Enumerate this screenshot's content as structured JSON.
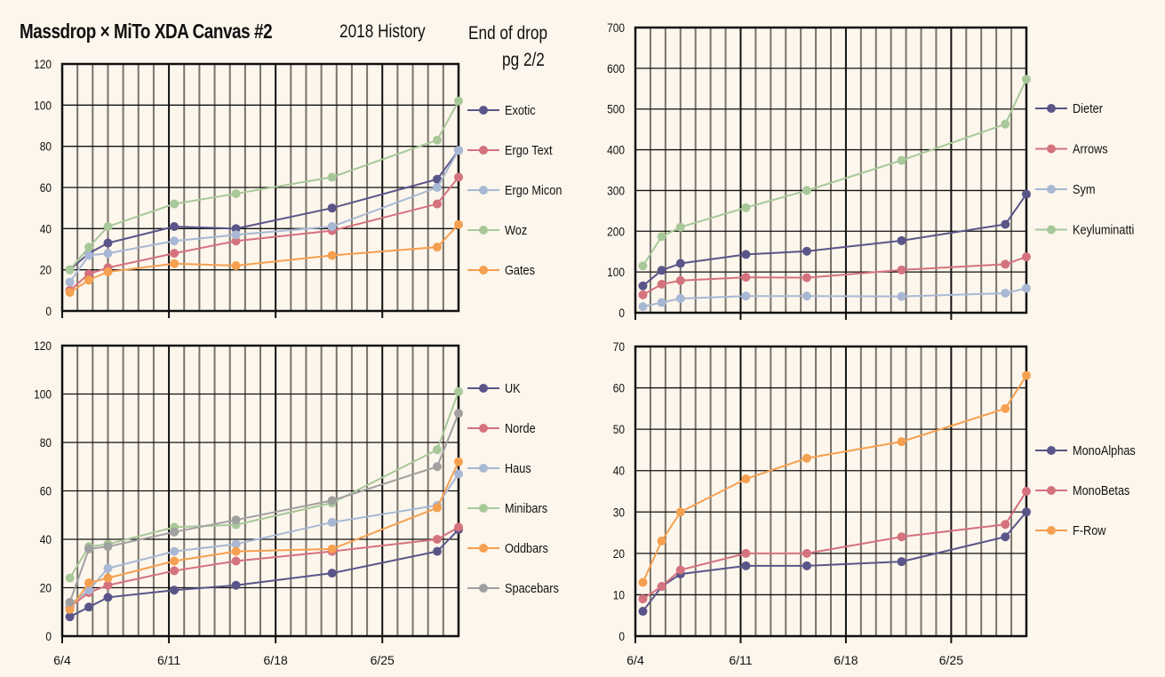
{
  "header": {
    "title": "Massdrop × MiTo XDA Canvas #2",
    "subtitle": "2018 History",
    "note_line1": "End of drop",
    "note_line2": "pg 2/2"
  },
  "colors": {
    "background": "#fdf6ec",
    "purple": "#5a5589",
    "red": "#d4727e",
    "blue": "#a8b8d4",
    "green": "#a8c89a",
    "orange": "#f5a050",
    "gray": "#a0a0a0"
  },
  "chart_data": [
    {
      "type": "line",
      "id": "top-left",
      "title": "",
      "xlabel": "",
      "ylabel": "",
      "x_unit": "days since 6/4",
      "x": [
        0.5,
        1.75,
        3,
        7.35,
        11.4,
        17.7,
        24.6,
        26
      ],
      "x_range": [
        0,
        26
      ],
      "x_ticks": [
        {
          "v": 0,
          "label": "6/4"
        },
        {
          "v": 7,
          "label": "6/11"
        },
        {
          "v": 14,
          "label": "6/18"
        },
        {
          "v": 21,
          "label": "6/25"
        }
      ],
      "ylim": [
        0,
        120
      ],
      "y_ticks": [
        0,
        20,
        40,
        60,
        80,
        100,
        120
      ],
      "grid": true,
      "legend": "right",
      "series": [
        {
          "name": "Exotic",
          "color": "#5a5589",
          "values": [
            20,
            28,
            33,
            41,
            40,
            50,
            64,
            78
          ]
        },
        {
          "name": "Ergo Text",
          "color": "#d4727e",
          "values": [
            10,
            18,
            21,
            28,
            34,
            39,
            52,
            65
          ]
        },
        {
          "name": "Ergo Micon",
          "color": "#a8b8d4",
          "values": [
            14,
            27,
            28,
            34,
            37,
            41,
            60,
            78
          ]
        },
        {
          "name": "Woz",
          "color": "#a8c89a",
          "values": [
            20,
            31,
            41,
            52,
            57,
            65,
            83,
            102
          ]
        },
        {
          "name": "Gates",
          "color": "#f5a050",
          "values": [
            9,
            15,
            19,
            23,
            22,
            27,
            31,
            42
          ]
        }
      ]
    },
    {
      "type": "line",
      "id": "top-right",
      "title": "",
      "xlabel": "",
      "ylabel": "",
      "x_unit": "days since 6/4",
      "x": [
        0.5,
        1.75,
        3,
        7.35,
        11.4,
        17.7,
        24.6,
        26
      ],
      "x_range": [
        0,
        26
      ],
      "x_ticks": [
        {
          "v": 0,
          "label": ""
        },
        {
          "v": 7,
          "label": ""
        },
        {
          "v": 14,
          "label": ""
        },
        {
          "v": 21,
          "label": ""
        }
      ],
      "ylim": [
        0,
        700
      ],
      "y_ticks": [
        0,
        100,
        200,
        300,
        400,
        500,
        600,
        700
      ],
      "grid": true,
      "legend": "right",
      "series": [
        {
          "name": "Dieter",
          "color": "#5a5589",
          "values": [
            66,
            104,
            121,
            143,
            151,
            177,
            217,
            291
          ]
        },
        {
          "name": "Arrows",
          "color": "#d4727e",
          "values": [
            44,
            70,
            79,
            87,
            86,
            105,
            119,
            137
          ]
        },
        {
          "name": "Sym",
          "color": "#a8b8d4",
          "values": [
            15,
            25,
            35,
            41,
            41,
            40,
            48,
            60
          ]
        },
        {
          "name": "Keyluminatti",
          "color": "#a8c89a",
          "values": [
            115,
            187,
            210,
            258,
            300,
            374,
            463,
            573
          ]
        }
      ]
    },
    {
      "type": "line",
      "id": "bottom-left",
      "title": "",
      "xlabel": "",
      "ylabel": "",
      "x_unit": "days since 6/4",
      "x": [
        0.5,
        1.75,
        3,
        7.35,
        11.4,
        17.7,
        24.6,
        26
      ],
      "x_range": [
        0,
        26
      ],
      "x_ticks": [
        {
          "v": 0,
          "label": "6/4"
        },
        {
          "v": 7,
          "label": "6/11"
        },
        {
          "v": 14,
          "label": "6/18"
        },
        {
          "v": 21,
          "label": "6/25"
        }
      ],
      "ylim": [
        0,
        120
      ],
      "y_ticks": [
        0,
        20,
        40,
        60,
        80,
        100,
        120
      ],
      "grid": true,
      "legend": "right",
      "series": [
        {
          "name": "UK",
          "color": "#5a5589",
          "values": [
            8,
            12,
            16,
            19,
            21,
            26,
            35,
            44
          ]
        },
        {
          "name": "Norde",
          "color": "#d4727e",
          "values": [
            12,
            18,
            21,
            27,
            31,
            35,
            40,
            45
          ]
        },
        {
          "name": "Haus",
          "color": "#a8b8d4",
          "values": [
            13,
            19,
            28,
            35,
            38,
            47,
            54,
            67
          ]
        },
        {
          "name": "Minibars",
          "color": "#a8c89a",
          "values": [
            24,
            37,
            38,
            45,
            46,
            55,
            77,
            101
          ]
        },
        {
          "name": "Oddbars",
          "color": "#f5a050",
          "values": [
            11,
            22,
            24,
            31,
            35,
            36,
            53,
            72
          ]
        },
        {
          "name": "Spacebars",
          "color": "#a0a0a0",
          "values": [
            14,
            36,
            37,
            43,
            48,
            56,
            70,
            92
          ]
        }
      ]
    },
    {
      "type": "line",
      "id": "bottom-right",
      "title": "",
      "xlabel": "",
      "ylabel": "",
      "x_unit": "days since 6/4",
      "x": [
        0.5,
        1.75,
        3,
        7.35,
        11.4,
        17.7,
        24.6,
        26
      ],
      "x_range": [
        0,
        26
      ],
      "x_ticks": [
        {
          "v": 0,
          "label": "6/4"
        },
        {
          "v": 7,
          "label": "6/11"
        },
        {
          "v": 14,
          "label": "6/18"
        },
        {
          "v": 21,
          "label": "6/25"
        }
      ],
      "ylim": [
        0,
        70
      ],
      "y_ticks": [
        0,
        10,
        20,
        30,
        40,
        50,
        60,
        70
      ],
      "grid": true,
      "legend": "right",
      "series": [
        {
          "name": "MonoAlphas",
          "color": "#5a5589",
          "values": [
            6,
            12,
            15,
            17,
            17,
            18,
            24,
            30
          ]
        },
        {
          "name": "MonoBetas",
          "color": "#d4727e",
          "values": [
            9,
            12,
            16,
            20,
            20,
            24,
            27,
            35
          ]
        },
        {
          "name": "F-Row",
          "color": "#f5a050",
          "values": [
            13,
            23,
            30,
            38,
            43,
            47,
            55,
            63
          ]
        }
      ]
    }
  ]
}
